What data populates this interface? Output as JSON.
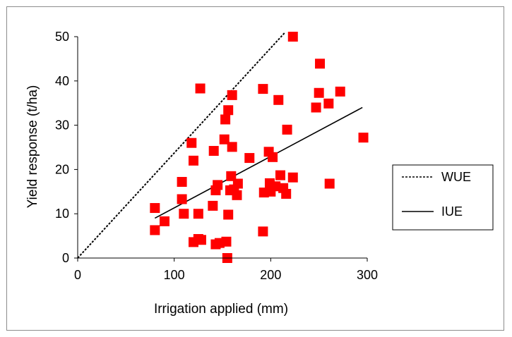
{
  "chart_data": {
    "type": "scatter",
    "xlabel": "Irrigation applied (mm)",
    "ylabel": "Yield response (t/ha)",
    "xlim": [
      0,
      300
    ],
    "ylim": [
      0,
      50
    ],
    "xticks": [
      0,
      100,
      200,
      300
    ],
    "yticks": [
      0,
      10,
      20,
      30,
      40,
      50
    ],
    "grid": false,
    "legend_position": "right",
    "marker_color": "#ff0000",
    "points": [
      {
        "x": 80,
        "y": 11.3
      },
      {
        "x": 80,
        "y": 6.3
      },
      {
        "x": 90,
        "y": 8.3
      },
      {
        "x": 108,
        "y": 17.2
      },
      {
        "x": 108,
        "y": 13.3
      },
      {
        "x": 110,
        "y": 10
      },
      {
        "x": 118,
        "y": 26
      },
      {
        "x": 120,
        "y": 22
      },
      {
        "x": 120,
        "y": 3.6
      },
      {
        "x": 125,
        "y": 10
      },
      {
        "x": 125,
        "y": 4.3
      },
      {
        "x": 127,
        "y": 38.3
      },
      {
        "x": 128,
        "y": 4.1
      },
      {
        "x": 140,
        "y": 11.8
      },
      {
        "x": 141,
        "y": 24.2
      },
      {
        "x": 143,
        "y": 15.3
      },
      {
        "x": 143,
        "y": 3.1
      },
      {
        "x": 145,
        "y": 16.5
      },
      {
        "x": 147,
        "y": 3.4
      },
      {
        "x": 152,
        "y": 26.8
      },
      {
        "x": 153,
        "y": 31.3
      },
      {
        "x": 154,
        "y": 3.7
      },
      {
        "x": 155,
        "y": 0
      },
      {
        "x": 156,
        "y": 33.4
      },
      {
        "x": 156,
        "y": 9.8
      },
      {
        "x": 158,
        "y": 15.3
      },
      {
        "x": 159,
        "y": 18.5
      },
      {
        "x": 160,
        "y": 25.1
      },
      {
        "x": 160,
        "y": 36.8
      },
      {
        "x": 162,
        "y": 15.5
      },
      {
        "x": 165,
        "y": 14.2
      },
      {
        "x": 166,
        "y": 16.8
      },
      {
        "x": 178,
        "y": 22.6
      },
      {
        "x": 192,
        "y": 38.2
      },
      {
        "x": 192,
        "y": 6
      },
      {
        "x": 193,
        "y": 14.8
      },
      {
        "x": 198,
        "y": 24
      },
      {
        "x": 199,
        "y": 16.9
      },
      {
        "x": 200,
        "y": 15
      },
      {
        "x": 202,
        "y": 22.8
      },
      {
        "x": 205,
        "y": 16.2
      },
      {
        "x": 208,
        "y": 35.7
      },
      {
        "x": 210,
        "y": 18.7
      },
      {
        "x": 213,
        "y": 15.8
      },
      {
        "x": 216,
        "y": 14.5
      },
      {
        "x": 217,
        "y": 29
      },
      {
        "x": 223,
        "y": 50
      },
      {
        "x": 223,
        "y": 18.2
      },
      {
        "x": 247,
        "y": 34
      },
      {
        "x": 250,
        "y": 37.3
      },
      {
        "x": 251,
        "y": 43.9
      },
      {
        "x": 260,
        "y": 34.9
      },
      {
        "x": 261,
        "y": 16.8
      },
      {
        "x": 272,
        "y": 37.6
      },
      {
        "x": 296,
        "y": 27.2
      }
    ],
    "lines": [
      {
        "name": "WUE",
        "style": "dashed",
        "color": "#000000",
        "x": [
          0,
          215
        ],
        "y": [
          0,
          51
        ]
      },
      {
        "name": "IUE",
        "style": "solid",
        "color": "#000000",
        "x": [
          80,
          295
        ],
        "y": [
          9,
          34
        ]
      }
    ],
    "legend": [
      "WUE",
      "IUE"
    ]
  }
}
